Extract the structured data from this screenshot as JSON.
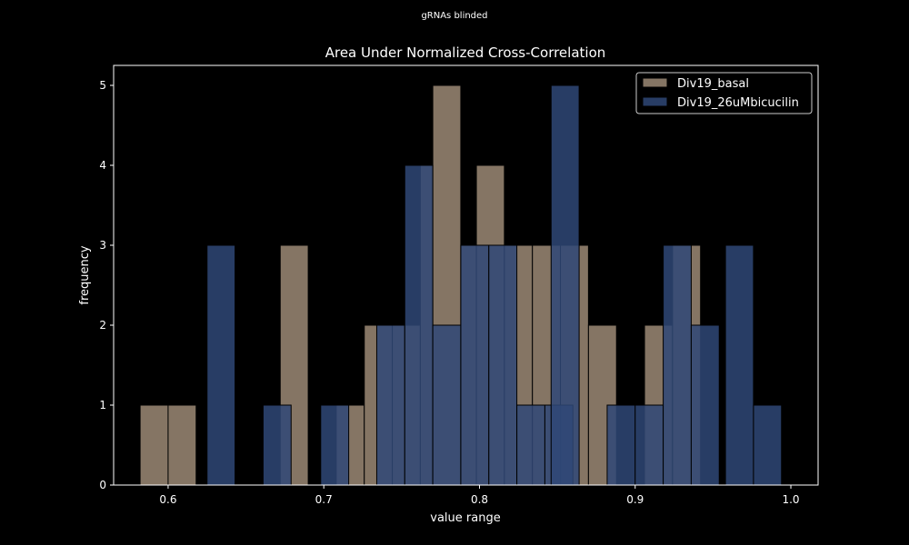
{
  "chart_data": {
    "type": "bar",
    "suptitle": "gRNAs blinded",
    "title": "Area Under Normalized Cross-Correlation",
    "xlabel": "value range",
    "ylabel": "frequency",
    "xlim": [
      0.565,
      1.0175
    ],
    "ylim": [
      0,
      5.25
    ],
    "xticks": [
      "0.6",
      "0.7",
      "0.8",
      "0.9",
      "1.0"
    ],
    "yticks": [
      "0",
      "1",
      "2",
      "3",
      "4",
      "5"
    ],
    "legend_position": "top-right",
    "series": [
      {
        "name": "Div19_basal",
        "color": "#857564",
        "bin_width": 0.018,
        "bins": [
          {
            "x": 0.582,
            "count": 1
          },
          {
            "x": 0.6,
            "count": 1
          },
          {
            "x": 0.672,
            "count": 3
          },
          {
            "x": 0.708,
            "count": 1
          },
          {
            "x": 0.726,
            "count": 2
          },
          {
            "x": 0.744,
            "count": 2
          },
          {
            "x": 0.762,
            "count": 4
          },
          {
            "x": 0.77,
            "count": 5
          },
          {
            "x": 0.788,
            "count": 3
          },
          {
            "x": 0.798,
            "count": 4
          },
          {
            "x": 0.816,
            "count": 3
          },
          {
            "x": 0.834,
            "count": 3
          },
          {
            "x": 0.852,
            "count": 3
          },
          {
            "x": 0.87,
            "count": 2
          },
          {
            "x": 0.906,
            "count": 2
          },
          {
            "x": 0.924,
            "count": 3
          }
        ]
      },
      {
        "name": "Div19_26uMbicucilin",
        "color": "#2f4877",
        "bin_width": 0.018,
        "bins": [
          {
            "x": 0.625,
            "count": 3
          },
          {
            "x": 0.661,
            "count": 1
          },
          {
            "x": 0.698,
            "count": 1
          },
          {
            "x": 0.734,
            "count": 2
          },
          {
            "x": 0.752,
            "count": 4
          },
          {
            "x": 0.77,
            "count": 2
          },
          {
            "x": 0.788,
            "count": 3
          },
          {
            "x": 0.806,
            "count": 3
          },
          {
            "x": 0.824,
            "count": 1
          },
          {
            "x": 0.842,
            "count": 1
          },
          {
            "x": 0.846,
            "count": 5
          },
          {
            "x": 0.882,
            "count": 1
          },
          {
            "x": 0.9,
            "count": 1
          },
          {
            "x": 0.918,
            "count": 3
          },
          {
            "x": 0.936,
            "count": 2
          },
          {
            "x": 0.958,
            "count": 3
          },
          {
            "x": 0.976,
            "count": 1
          }
        ]
      }
    ]
  }
}
